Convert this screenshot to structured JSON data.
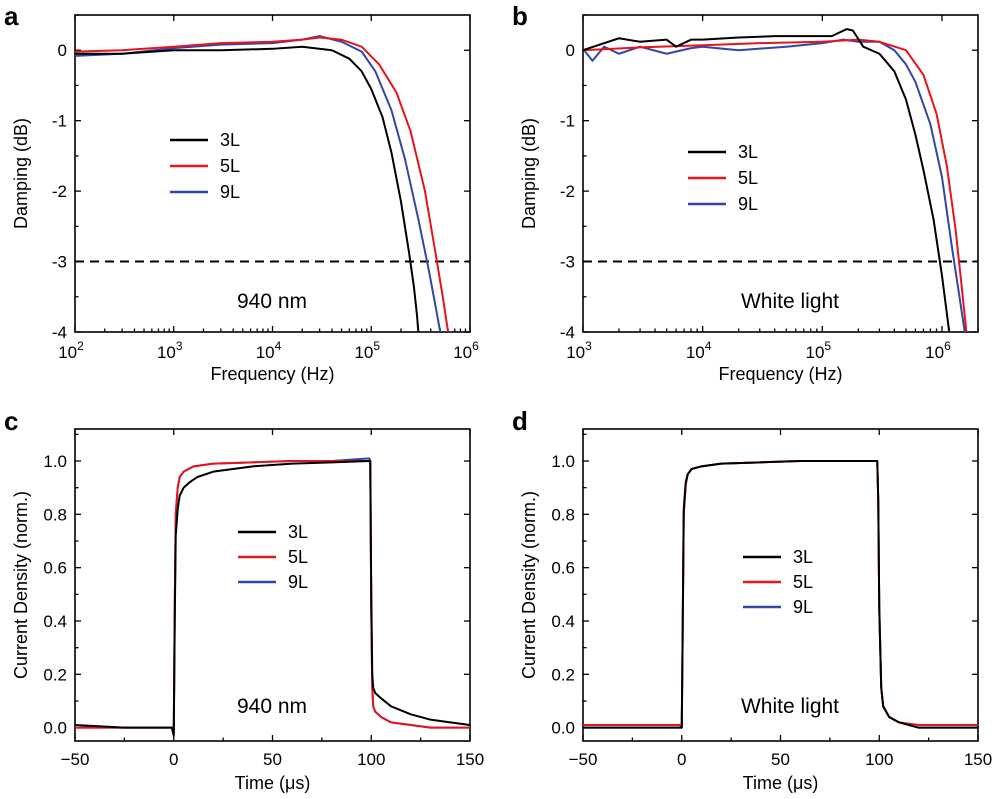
{
  "figure": {
    "colors": {
      "3L": "#000000",
      "5L": "#e8141b",
      "9L": "#3246a8"
    }
  },
  "chart_data": [
    {
      "panel": "a",
      "type": "line",
      "xlabel": "Frequency (Hz)",
      "ylabel": "Damping (dB)",
      "xscale": "log",
      "xlim": [
        100,
        1000000
      ],
      "ylim": [
        -4,
        0.5
      ],
      "x_ticks": [
        100,
        1000,
        10000,
        100000,
        1000000
      ],
      "x_tick_labels": [
        [
          "10",
          "2"
        ],
        [
          "10",
          "3"
        ],
        [
          "10",
          "4"
        ],
        [
          "10",
          "5"
        ],
        [
          "10",
          "6"
        ]
      ],
      "y_ticks": [
        0,
        -1,
        -2,
        -3,
        -4
      ],
      "y_tick_labels": [
        "0",
        "-1",
        "-2",
        "-3",
        "-4"
      ],
      "reference_line": {
        "y": -3,
        "style": "dashed"
      },
      "annotation": "940 nm",
      "legend_position": "center-left",
      "grid": false,
      "series": [
        {
          "name": "3L",
          "color": "#000000",
          "x": [
            100,
            300,
            1000,
            3000,
            10000,
            20000,
            40000,
            60000,
            80000,
            100000,
            130000,
            160000,
            200000,
            240000,
            270000,
            290000,
            300000
          ],
          "y": [
            -0.05,
            -0.05,
            0.0,
            0.0,
            0.02,
            0.05,
            0.0,
            -0.12,
            -0.3,
            -0.55,
            -0.95,
            -1.45,
            -2.15,
            -2.85,
            -3.35,
            -3.75,
            -4.0
          ]
        },
        {
          "name": "5L",
          "color": "#e8141b",
          "x": [
            100,
            300,
            1000,
            3000,
            10000,
            20000,
            30000,
            50000,
            80000,
            120000,
            180000,
            250000,
            350000,
            450000,
            530000,
            600000
          ],
          "y": [
            -0.02,
            0.0,
            0.05,
            0.1,
            0.12,
            0.15,
            0.18,
            0.15,
            0.05,
            -0.2,
            -0.6,
            -1.15,
            -2.0,
            -2.9,
            -3.5,
            -4.0
          ]
        },
        {
          "name": "9L",
          "color": "#3246a8",
          "x": [
            100,
            300,
            1000,
            3000,
            10000,
            20000,
            30000,
            50000,
            80000,
            110000,
            160000,
            220000,
            300000,
            380000,
            450000,
            500000
          ],
          "y": [
            -0.08,
            -0.05,
            0.03,
            0.08,
            0.1,
            0.15,
            0.2,
            0.12,
            -0.02,
            -0.3,
            -0.85,
            -1.55,
            -2.4,
            -3.1,
            -3.65,
            -4.0
          ]
        }
      ]
    },
    {
      "panel": "b",
      "type": "line",
      "xlabel": "Frequency (Hz)",
      "ylabel": "Damping (dB)",
      "xscale": "log",
      "xlim": [
        1000,
        2000000
      ],
      "ylim": [
        -4,
        0.5
      ],
      "x_ticks": [
        1000,
        10000,
        100000,
        1000000
      ],
      "x_tick_labels": [
        [
          "10",
          "3"
        ],
        [
          "10",
          "4"
        ],
        [
          "10",
          "5"
        ],
        [
          "10",
          "6"
        ]
      ],
      "y_ticks": [
        0,
        -1,
        -2,
        -3,
        -4
      ],
      "y_tick_labels": [
        "0",
        "-1",
        "-2",
        "-3",
        "-4"
      ],
      "reference_line": {
        "y": -3,
        "style": "dashed"
      },
      "annotation": "White light",
      "legend_position": "center-left",
      "grid": false,
      "series": [
        {
          "name": "3L",
          "color": "#000000",
          "x": [
            1000,
            1500,
            2000,
            3000,
            5000,
            6000,
            8000,
            10000,
            20000,
            40000,
            80000,
            120000,
            160000,
            180000,
            220000,
            300000,
            400000,
            500000,
            600000,
            700000,
            850000,
            1000000,
            1150000
          ],
          "y": [
            0.0,
            0.1,
            0.17,
            0.12,
            0.15,
            0.05,
            0.15,
            0.15,
            0.18,
            0.2,
            0.2,
            0.2,
            0.3,
            0.28,
            0.05,
            -0.05,
            -0.3,
            -0.7,
            -1.2,
            -1.7,
            -2.4,
            -3.2,
            -4.0
          ]
        },
        {
          "name": "5L",
          "color": "#e8141b",
          "x": [
            1000,
            3000,
            10000,
            30000,
            100000,
            200000,
            300000,
            500000,
            700000,
            900000,
            1100000,
            1300000,
            1450000,
            1600000
          ],
          "y": [
            0.0,
            0.04,
            0.07,
            0.1,
            0.12,
            0.15,
            0.12,
            0.0,
            -0.35,
            -0.9,
            -1.65,
            -2.55,
            -3.3,
            -4.0
          ]
        },
        {
          "name": "9L",
          "color": "#3246a8",
          "x": [
            1000,
            1200,
            1500,
            2000,
            3000,
            5000,
            8000,
            10000,
            20000,
            50000,
            100000,
            150000,
            200000,
            300000,
            400000,
            500000,
            600000,
            800000,
            1000000,
            1200000,
            1400000,
            1550000
          ],
          "y": [
            0.02,
            -0.15,
            0.05,
            -0.05,
            0.05,
            -0.05,
            0.03,
            0.05,
            0.0,
            0.05,
            0.1,
            0.15,
            0.12,
            0.12,
            0.0,
            -0.2,
            -0.45,
            -1.05,
            -1.8,
            -2.75,
            -3.5,
            -4.0
          ]
        }
      ]
    },
    {
      "panel": "c",
      "type": "line",
      "xlabel": "Time (μs)",
      "ylabel": "Current Density (norm.)",
      "xlim": [
        -50,
        150
      ],
      "ylim": [
        -0.05,
        1.12
      ],
      "x_ticks": [
        -50,
        0,
        50,
        100,
        150
      ],
      "x_tick_labels": [
        "−50",
        "0",
        "50",
        "100",
        "150"
      ],
      "y_ticks": [
        0.0,
        0.2,
        0.4,
        0.6,
        0.8,
        1.0
      ],
      "y_tick_labels": [
        "0.0",
        "0.2",
        "0.4",
        "0.6",
        "0.8",
        "1.0"
      ],
      "annotation": "940 nm",
      "legend_position": "center",
      "grid": false,
      "series": [
        {
          "name": "3L",
          "color": "#000000",
          "x": [
            -50,
            -25,
            -1,
            0,
            0.5,
            1,
            2,
            3,
            5,
            8,
            12,
            20,
            30,
            40,
            60,
            80,
            99,
            99.5,
            100,
            100.5,
            101,
            102,
            105,
            110,
            120,
            130,
            140,
            150
          ],
          "y": [
            0.01,
            0.0,
            0.0,
            -0.03,
            0.4,
            0.72,
            0.82,
            0.87,
            0.9,
            0.92,
            0.94,
            0.96,
            0.97,
            0.98,
            0.99,
            0.995,
            1.0,
            1.0,
            0.5,
            0.2,
            0.15,
            0.13,
            0.11,
            0.08,
            0.05,
            0.03,
            0.02,
            0.01
          ]
        },
        {
          "name": "5L",
          "color": "#e8141b",
          "x": [
            -50,
            -25,
            -1,
            0,
            0.5,
            1,
            2,
            3,
            5,
            10,
            20,
            40,
            60,
            80,
            99,
            99.5,
            100,
            100.5,
            101,
            102,
            105,
            110,
            120,
            130,
            150
          ],
          "y": [
            0.0,
            0.0,
            0.0,
            -0.02,
            0.45,
            0.8,
            0.9,
            0.94,
            0.96,
            0.98,
            0.99,
            0.995,
            1.0,
            1.0,
            1.0,
            1.0,
            0.45,
            0.15,
            0.08,
            0.06,
            0.04,
            0.02,
            0.01,
            0.0,
            0.0
          ]
        },
        {
          "name": "9L",
          "color": "#3246a8",
          "x": [
            -50,
            -25,
            -1,
            0,
            0.5,
            1,
            2,
            3,
            5,
            10,
            20,
            40,
            60,
            80,
            99,
            99.5,
            100,
            100.5,
            101,
            102,
            105,
            110,
            120,
            130,
            150
          ],
          "y": [
            0.0,
            0.0,
            0.0,
            -0.02,
            0.45,
            0.8,
            0.9,
            0.94,
            0.96,
            0.98,
            0.99,
            0.995,
            1.0,
            1.0,
            1.01,
            1.0,
            0.45,
            0.15,
            0.08,
            0.06,
            0.04,
            0.02,
            0.01,
            0.0,
            0.0
          ]
        }
      ]
    },
    {
      "panel": "d",
      "type": "line",
      "xlabel": "Time (μs)",
      "ylabel": "Current Density (norm.)",
      "xlim": [
        -50,
        150
      ],
      "ylim": [
        -0.05,
        1.12
      ],
      "x_ticks": [
        -50,
        0,
        50,
        100,
        150
      ],
      "x_tick_labels": [
        "−50",
        "0",
        "50",
        "100",
        "150"
      ],
      "y_ticks": [
        0.0,
        0.2,
        0.4,
        0.6,
        0.8,
        1.0
      ],
      "y_tick_labels": [
        "0.0",
        "0.2",
        "0.4",
        "0.6",
        "0.8",
        "1.0"
      ],
      "annotation": "White light",
      "legend_position": "center",
      "grid": false,
      "series": [
        {
          "name": "3L",
          "color": "#000000",
          "x": [
            -50,
            -1,
            0,
            0.5,
            1,
            2,
            3,
            5,
            10,
            20,
            40,
            60,
            80,
            99,
            99.5,
            100,
            101,
            102,
            105,
            110,
            120,
            135,
            150
          ],
          "y": [
            0.0,
            0.0,
            0.0,
            0.4,
            0.82,
            0.92,
            0.95,
            0.97,
            0.98,
            0.99,
            0.995,
            1.0,
            1.0,
            1.0,
            0.85,
            0.45,
            0.15,
            0.08,
            0.04,
            0.02,
            0.0,
            0.0,
            0.0
          ]
        },
        {
          "name": "5L",
          "color": "#e8141b",
          "x": [
            -50,
            -1,
            0,
            0.5,
            1,
            2,
            3,
            5,
            10,
            20,
            40,
            60,
            80,
            99,
            99.5,
            100,
            101,
            102,
            105,
            110,
            120,
            135,
            150
          ],
          "y": [
            0.01,
            0.01,
            0.0,
            0.38,
            0.8,
            0.91,
            0.95,
            0.97,
            0.98,
            0.99,
            0.995,
            1.0,
            1.0,
            1.0,
            0.85,
            0.45,
            0.15,
            0.08,
            0.04,
            0.02,
            0.01,
            0.01,
            0.01
          ]
        },
        {
          "name": "9L",
          "color": "#3246a8",
          "x": [
            -50,
            -1,
            0,
            0.5,
            1,
            2,
            3,
            5,
            10,
            20,
            40,
            60,
            80,
            99,
            99.5,
            100,
            101,
            102,
            105,
            110,
            120,
            135,
            150
          ],
          "y": [
            0.0,
            0.0,
            0.0,
            0.38,
            0.8,
            0.91,
            0.95,
            0.97,
            0.98,
            0.99,
            0.995,
            1.0,
            1.0,
            1.0,
            0.85,
            0.45,
            0.15,
            0.08,
            0.04,
            0.02,
            0.0,
            0.0,
            0.0
          ]
        }
      ]
    }
  ]
}
